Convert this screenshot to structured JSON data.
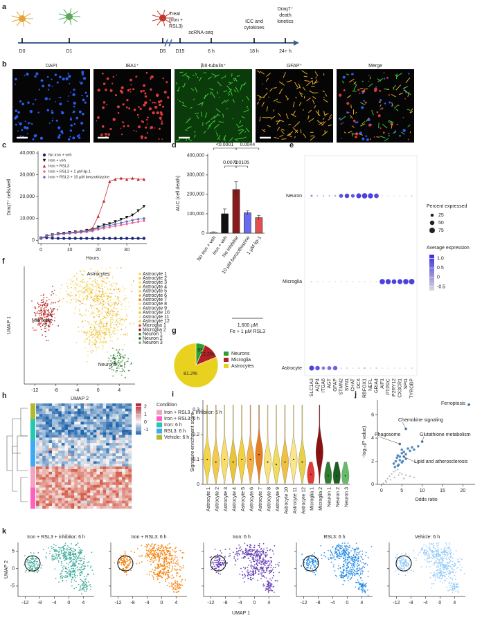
{
  "figure": {
    "a": {
      "label": "a",
      "timepoints": [
        "D0",
        "D1",
        "D5",
        "D15",
        "6 h",
        "18 h",
        "24+ h"
      ],
      "events": {
        "treat": [
          "Treat",
          "(iron +",
          "RSL3)"
        ],
        "scrna": [
          "scRNA-seq"
        ],
        "icc": [
          "ICC and",
          "cytokines"
        ],
        "draq": [
          "Draq7⁺",
          "death",
          "kinetics"
        ]
      }
    },
    "b": {
      "label": "b",
      "channels": [
        "DAPI",
        "IBA1⁺",
        "βIII-tubulin⁺",
        "GFAP⁺",
        "Merge"
      ]
    },
    "c": {
      "label": "c",
      "type": "line",
      "x_label": "Hours",
      "y_label": "Draq7⁺ cells/well",
      "x": [
        0,
        2,
        4,
        6,
        8,
        10,
        12,
        14,
        16,
        18,
        20,
        22,
        24,
        26,
        28,
        30,
        32,
        34,
        36
      ],
      "xlim": [
        -1,
        37
      ],
      "xticks": [
        0,
        10,
        20,
        30
      ],
      "ylim": [
        -1500,
        41000
      ],
      "yticks": [
        0,
        {
          "value": 10000,
          "label": "10,000"
        },
        {
          "value": 20000,
          "label": "20,000"
        },
        {
          "value": 30000,
          "label": "30,000"
        },
        {
          "value": 40000,
          "label": "40,000"
        }
      ],
      "series": [
        {
          "name": "No iron + veh",
          "color": "#1a237e",
          "values": [
            1000,
            1200,
            1000,
            900,
            900,
            900,
            900,
            900,
            900,
            900,
            900,
            900,
            900,
            900,
            900,
            900,
            900,
            900,
            900
          ]
        },
        {
          "name": "Iron + veh",
          "color": "#111111",
          "values": [
            1000,
            2000,
            2500,
            3000,
            3200,
            3500,
            3800,
            4000,
            4500,
            5000,
            6000,
            7000,
            7500,
            8500,
            9500,
            10500,
            11500,
            13500,
            15500
          ]
        },
        {
          "name": "Iron + RSL3",
          "color": "#c62828",
          "values": [
            1000,
            2000,
            2500,
            3000,
            3200,
            3500,
            3800,
            4000,
            4500,
            5500,
            11000,
            18000,
            27000,
            28000,
            28500,
            28000,
            28500,
            28000,
            28000
          ]
        },
        {
          "name": "Iron + RSL3 + 1 µM lip-1",
          "color": "#f06292",
          "values": [
            1000,
            2000,
            2500,
            2800,
            3000,
            3200,
            3400,
            3600,
            3800,
            4200,
            5000,
            5500,
            6000,
            6500,
            7000,
            7500,
            8000,
            8500,
            9000
          ]
        },
        {
          "name": "Iron + RSL3 + 10 µM benzothiazine",
          "color": "#5c6bc0",
          "values": [
            1000,
            2000,
            2500,
            2900,
            3100,
            3300,
            3600,
            3900,
            4200,
            4700,
            5500,
            6200,
            6800,
            7400,
            8000,
            8600,
            9200,
            9700,
            10000
          ]
        }
      ]
    },
    "d": {
      "label": "d",
      "type": "bar",
      "y_label": "AUC (cell death)",
      "categories": [
        "No iron + veh",
        "Iron + veh",
        "No inhibitor",
        "10 µM benzothiazine",
        "1 µM lip-1"
      ],
      "values": [
        5000,
        100000,
        225000,
        105000,
        80000
      ],
      "errors": [
        2000,
        25000,
        40000,
        10000,
        12000
      ],
      "colors": [
        "#ffffff",
        "#111111",
        "#8b1a1a",
        "#6a6aee",
        "#e05050"
      ],
      "ylim": [
        0,
        410000
      ],
      "yticks": [
        0,
        {
          "value": 100000,
          "label": "100,000"
        },
        {
          "value": 200000,
          "label": "200,000"
        },
        {
          "value": 300000,
          "label": "300,000"
        },
        {
          "value": 400000,
          "label": "400,000"
        }
      ],
      "comparisons": [
        "<0.0001",
        "0.0044",
        "0.0072",
        "0.0105"
      ],
      "group_label": [
        "1,600 µM",
        "Fe + 1 µM RSL3"
      ]
    },
    "e": {
      "label": "e",
      "type": "dot",
      "genes": [
        "SLC1A3",
        "AQP4",
        "ITGA6",
        "AGT",
        "GFAP",
        "STMN2",
        "SYN1",
        "CHAT",
        "DCX",
        "RBFOX1",
        "NEFL",
        "GRIA4",
        "AIF1",
        "PTPRC",
        "P2RY12",
        "CX3CR1",
        "SPI1",
        "TYROBP"
      ],
      "groups": [
        "Neuron",
        "Microglia",
        "Astrocyte"
      ],
      "percent": [
        [
          10,
          5,
          5,
          5,
          8,
          40,
          50,
          35,
          60,
          70,
          65,
          55,
          3,
          3,
          3,
          3,
          3,
          5
        ],
        [
          5,
          3,
          3,
          3,
          3,
          3,
          3,
          3,
          3,
          3,
          3,
          3,
          70,
          65,
          55,
          60,
          70,
          75
        ],
        [
          60,
          50,
          30,
          40,
          50,
          5,
          5,
          3,
          5,
          8,
          5,
          5,
          3,
          3,
          3,
          3,
          3,
          5
        ]
      ],
      "expression": [
        [
          0.2,
          -0.3,
          -0.3,
          -0.3,
          -0.2,
          0.8,
          1.0,
          0.7,
          1.0,
          1.0,
          1.0,
          0.9,
          -0.5,
          -0.5,
          -0.5,
          -0.5,
          -0.5,
          -0.5
        ],
        [
          -0.5,
          -0.5,
          -0.5,
          -0.5,
          -0.5,
          -0.5,
          -0.5,
          -0.5,
          -0.5,
          -0.5,
          -0.5,
          -0.5,
          1.0,
          1.0,
          1.0,
          1.0,
          1.0,
          1.0
        ],
        [
          1.0,
          0.8,
          0.3,
          0.5,
          0.6,
          -0.5,
          -0.5,
          -0.5,
          -0.5,
          -0.4,
          -0.5,
          -0.5,
          -0.5,
          -0.5,
          -0.5,
          -0.5,
          -0.5,
          -0.5
        ]
      ],
      "size_title": "Percent expressed",
      "size_ticks": [
        25,
        50,
        75
      ],
      "color_title": "Average expression",
      "color_lim": [
        -0.7,
        1.2
      ],
      "color_ticks": [
        {
          "value": 1,
          "label": "1.0"
        },
        0.5,
        0,
        -0.5
      ]
    },
    "f": {
      "label": "f",
      "type": "umap",
      "x_label": "UMAP 2",
      "y_label": "UMAP 1",
      "xlim": [
        -14,
        7
      ],
      "xticks": [
        -12,
        -8,
        -4,
        0,
        4
      ],
      "cluster_labels": [
        "Astrocytes",
        "Microglia",
        "Neurons"
      ],
      "legend": [
        {
          "name": "Astrocyte 1",
          "color": "#f5d547"
        },
        {
          "name": "Astrocyte 2",
          "color": "#f2c94c"
        },
        {
          "name": "Astrocyte 3",
          "color": "#f7dc6f"
        },
        {
          "name": "Astrocyte 4",
          "color": "#e8c53a"
        },
        {
          "name": "Astrocyte 5",
          "color": "#f4d03f"
        },
        {
          "name": "Astrocyte 6",
          "color": "#f5b041"
        },
        {
          "name": "Astrocyte 7",
          "color": "#e67e22"
        },
        {
          "name": "Astrocyte 8",
          "color": "#f8e27a"
        },
        {
          "name": "Astrocyte 9",
          "color": "#eedc5b"
        },
        {
          "name": "Astrocyte 10",
          "color": "#f0c040"
        },
        {
          "name": "Astrocyte 11",
          "color": "#fae58a"
        },
        {
          "name": "Astrocyte 12",
          "color": "#e9d04a"
        },
        {
          "name": "Microglia 1",
          "color": "#e53935"
        },
        {
          "name": "Microglia 2",
          "color": "#8b1010"
        },
        {
          "name": "Neuron 1",
          "color": "#2e7d32"
        },
        {
          "name": "Neuron 2",
          "color": "#1b5e20"
        },
        {
          "name": "Neuron 3",
          "color": "#66bb6a"
        }
      ]
    },
    "g": {
      "label": "g",
      "type": "pie",
      "categories": [
        "Neurons",
        "Microglia",
        "Astrocytes"
      ],
      "values": [
        6.6,
        12.2,
        81.2
      ],
      "value_labels": [
        "6.6%",
        "12.2%",
        "81.2%"
      ],
      "colors": [
        "#2ca02c",
        "#b22222",
        "#e8d21f"
      ]
    },
    "h": {
      "label": "h",
      "type": "heatmap",
      "legend_title": "Condition",
      "conditions": [
        {
          "name": "Iron + RSL3 + inhibitor: 6 h",
          "color": "#f7a1c0"
        },
        {
          "name": "Iron + RSL3: 6 h",
          "color": "#ff5fbf"
        },
        {
          "name": "Iron: 6 h",
          "color": "#22c8b0"
        },
        {
          "name": "RSL3: 6 h",
          "color": "#3fa9f5"
        },
        {
          "name": "Vehicle: 6 h",
          "color": "#b5b82a"
        }
      ],
      "color_lim": [
        -1.6,
        2.4
      ],
      "color_ticks": [
        2,
        1,
        0,
        -1
      ]
    },
    "i": {
      "label": "i",
      "type": "violin",
      "y_label": "Signature enrichment score",
      "categories": [
        "Astrocyte 1",
        "Astrocyte 2",
        "Astrocyte 3",
        "Astrocyte 4",
        "Astrocyte 5",
        "Astrocyte 6",
        "Astrocyte 7",
        "Astrocyte 8",
        "Astrocyte 9",
        "Astrocyte 10",
        "Astrocyte 11",
        "Astrocyte 12",
        "Microglia 1",
        "Microglia 2",
        "Neuron 1",
        "Neuron 2",
        "Neuron 3"
      ],
      "values": [
        0.1,
        0.09,
        0.1,
        0.09,
        0.1,
        0.1,
        0.12,
        0.09,
        0.08,
        0.09,
        0.1,
        0.09,
        0.04,
        0.13,
        0.035,
        0.035,
        0.035
      ],
      "colors": [
        "#f5d547",
        "#f2c94c",
        "#f7dc6f",
        "#e8c53a",
        "#f4d03f",
        "#f5b041",
        "#e67e22",
        "#f8e27a",
        "#eedc5b",
        "#f0c040",
        "#fae58a",
        "#e9d04a",
        "#e53935",
        "#8b1010",
        "#2e7d32",
        "#1b5e20",
        "#66bb6a"
      ],
      "ylim": [
        0,
        0.34
      ],
      "yticks": [
        0,
        0.1,
        0.2,
        0.3
      ]
    },
    "j": {
      "label": "j",
      "type": "scatter",
      "x_label": "Odds ratio",
      "y_label": "−log₁₀(P value)",
      "xlim": [
        -1,
        23
      ],
      "xticks": [
        0,
        5,
        10,
        15,
        20
      ],
      "ylim": [
        0,
        7.3
      ],
      "yticks": [
        0,
        2,
        4,
        6
      ],
      "points": [
        {
          "color": "#3b78b5",
          "x": [
            4,
            5,
            5.5,
            6,
            3.5,
            4.5,
            5,
            6.5,
            7,
            8,
            3,
            4,
            5,
            4.5,
            3.8,
            5.2,
            6,
            7.5,
            9,
            4.2,
            3.3
          ],
          "y": [
            2.5,
            3,
            2.8,
            2.2,
            2,
            2.1,
            2.7,
            3.1,
            2.9,
            3,
            1.8,
            1.6,
            1.9,
            2.4,
            2.3,
            2.0,
            2.6,
            3.2,
            3.3,
            1.7,
            1.5
          ]
        },
        {
          "color": "#aaaaaa",
          "x": [
            0.5,
            1,
            1.5,
            2,
            2.5,
            3,
            3.5,
            4,
            4.5,
            5,
            6,
            7,
            8,
            1.2,
            2.2,
            3.2,
            4.2,
            5.5
          ],
          "y": [
            0.1,
            0.3,
            0.5,
            0.7,
            0.9,
            1.1,
            1.2,
            1.3,
            1.0,
            0.9,
            0.8,
            0.7,
            0.6,
            0.2,
            0.4,
            0.6,
            0.8,
            0.5
          ]
        }
      ],
      "annotations": [
        {
          "text": "Ferroptosis",
          "x": 21.5,
          "y": 6.9
        },
        {
          "text": "Chemokine signaling",
          "x": 6,
          "y": 4.8
        },
        {
          "text": "Glutathione metabolism",
          "x": 10,
          "y": 3.7
        },
        {
          "text": "Phagosome",
          "x": 4.5,
          "y": 3.5
        },
        {
          "text": "Lipid and atherosclerosis",
          "x": 5.5,
          "y": 2.4
        }
      ]
    },
    "k": {
      "label": "k",
      "type": "umap",
      "x_label": "UMAP 1",
      "y_label": "UMAP 2",
      "xlim": [
        -14,
        7
      ],
      "xticks": [
        -12,
        -8,
        -4,
        0,
        4
      ],
      "ylim": [
        -8,
        7.5
      ],
      "yticks": [
        5,
        0,
        -5
      ],
      "panels": [
        {
          "title": "Iron + RSL3 + inhibitor: 6 h",
          "color": "#3aaa9a"
        },
        {
          "title": "Iron + RSL3: 6 h",
          "color": "#f57c00"
        },
        {
          "title": "Iron: 6 h",
          "color": "#5e35b1"
        },
        {
          "title": "RSL3: 6 h",
          "color": "#1e88e5"
        },
        {
          "title": "Vehicle: 6 h",
          "color": "#90caf9"
        }
      ]
    }
  }
}
